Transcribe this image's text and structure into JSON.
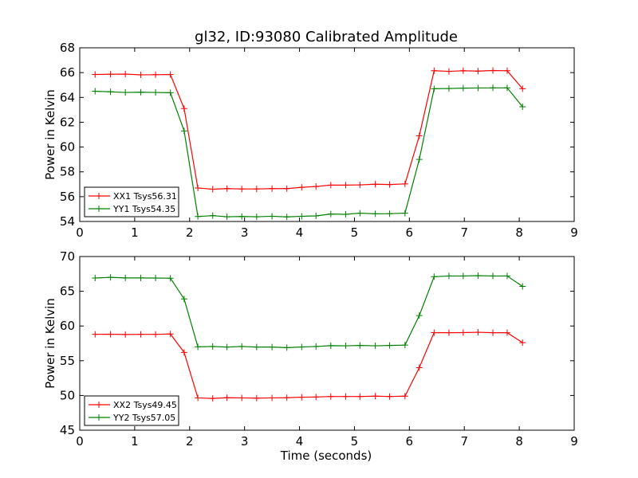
{
  "chart_data": {
    "title": "gl32, ID:93080 Calibrated Amplitude",
    "type": "line",
    "xlabel": "Time (seconds)",
    "grid": false,
    "legend_placement": "lower-left",
    "panels": [
      {
        "ylabel": "Power in Kelvin",
        "xlim": [
          0,
          9
        ],
        "ylim": [
          54,
          68
        ],
        "xticks": [
          0,
          1,
          2,
          3,
          4,
          5,
          6,
          7,
          8,
          9
        ],
        "yticks": [
          54,
          56,
          58,
          60,
          62,
          64,
          66,
          68
        ],
        "x": [
          0.28,
          0.56,
          0.83,
          1.11,
          1.38,
          1.65,
          1.9,
          2.15,
          2.42,
          2.68,
          2.95,
          3.22,
          3.5,
          3.77,
          4.04,
          4.3,
          4.57,
          4.84,
          5.1,
          5.38,
          5.64,
          5.92,
          6.18,
          6.45,
          6.72,
          6.98,
          7.25,
          7.52,
          7.78,
          8.06
        ],
        "series": [
          {
            "name": "XX1 Tsys56.31",
            "color": "#ff0000",
            "values": [
              65.85,
              65.87,
              65.88,
              65.82,
              65.83,
              65.85,
              63.1,
              56.7,
              56.6,
              56.65,
              56.62,
              56.62,
              56.65,
              56.65,
              56.75,
              56.82,
              56.93,
              56.93,
              56.95,
              57.0,
              56.98,
              57.03,
              60.9,
              66.15,
              66.1,
              66.15,
              66.12,
              66.17,
              66.15,
              64.7
            ]
          },
          {
            "name": "YY1 Tsys54.35",
            "color": "#008000",
            "values": [
              64.5,
              64.45,
              64.4,
              64.42,
              64.4,
              64.38,
              61.3,
              54.4,
              54.47,
              54.38,
              54.4,
              54.38,
              54.42,
              54.37,
              54.42,
              54.45,
              54.6,
              54.58,
              54.67,
              54.62,
              54.63,
              54.67,
              59.0,
              64.7,
              64.72,
              64.75,
              64.76,
              64.77,
              64.77,
              63.25
            ]
          }
        ]
      },
      {
        "ylabel": "Power in Kelvin",
        "xlim": [
          0,
          9
        ],
        "ylim": [
          45,
          70
        ],
        "xticks": [
          0,
          1,
          2,
          3,
          4,
          5,
          6,
          7,
          8,
          9
        ],
        "yticks": [
          45,
          50,
          55,
          60,
          65,
          70
        ],
        "x": [
          0.28,
          0.56,
          0.83,
          1.11,
          1.38,
          1.65,
          1.9,
          2.15,
          2.42,
          2.68,
          2.95,
          3.22,
          3.5,
          3.77,
          4.04,
          4.3,
          4.57,
          4.84,
          5.1,
          5.38,
          5.64,
          5.92,
          6.18,
          6.45,
          6.72,
          6.98,
          7.25,
          7.52,
          7.78,
          8.06
        ],
        "series": [
          {
            "name": "XX2 Tsys49.45",
            "color": "#ff0000",
            "values": [
              58.8,
              58.82,
              58.78,
              58.8,
              58.8,
              58.85,
              56.2,
              49.65,
              49.57,
              49.67,
              49.65,
              49.62,
              49.65,
              49.67,
              49.75,
              49.78,
              49.85,
              49.85,
              49.85,
              49.9,
              49.85,
              49.9,
              54.0,
              59.05,
              59.03,
              59.05,
              59.1,
              59.03,
              59.03,
              57.6
            ]
          },
          {
            "name": "YY2 Tsys57.05",
            "color": "#008000",
            "values": [
              66.9,
              67.0,
              66.92,
              66.92,
              66.9,
              66.88,
              63.9,
              57.0,
              57.05,
              56.97,
              57.05,
              56.97,
              56.97,
              56.88,
              56.98,
              57.05,
              57.17,
              57.15,
              57.2,
              57.15,
              57.2,
              57.25,
              61.5,
              67.1,
              67.2,
              67.2,
              67.25,
              67.2,
              67.2,
              65.7
            ]
          }
        ]
      }
    ]
  }
}
